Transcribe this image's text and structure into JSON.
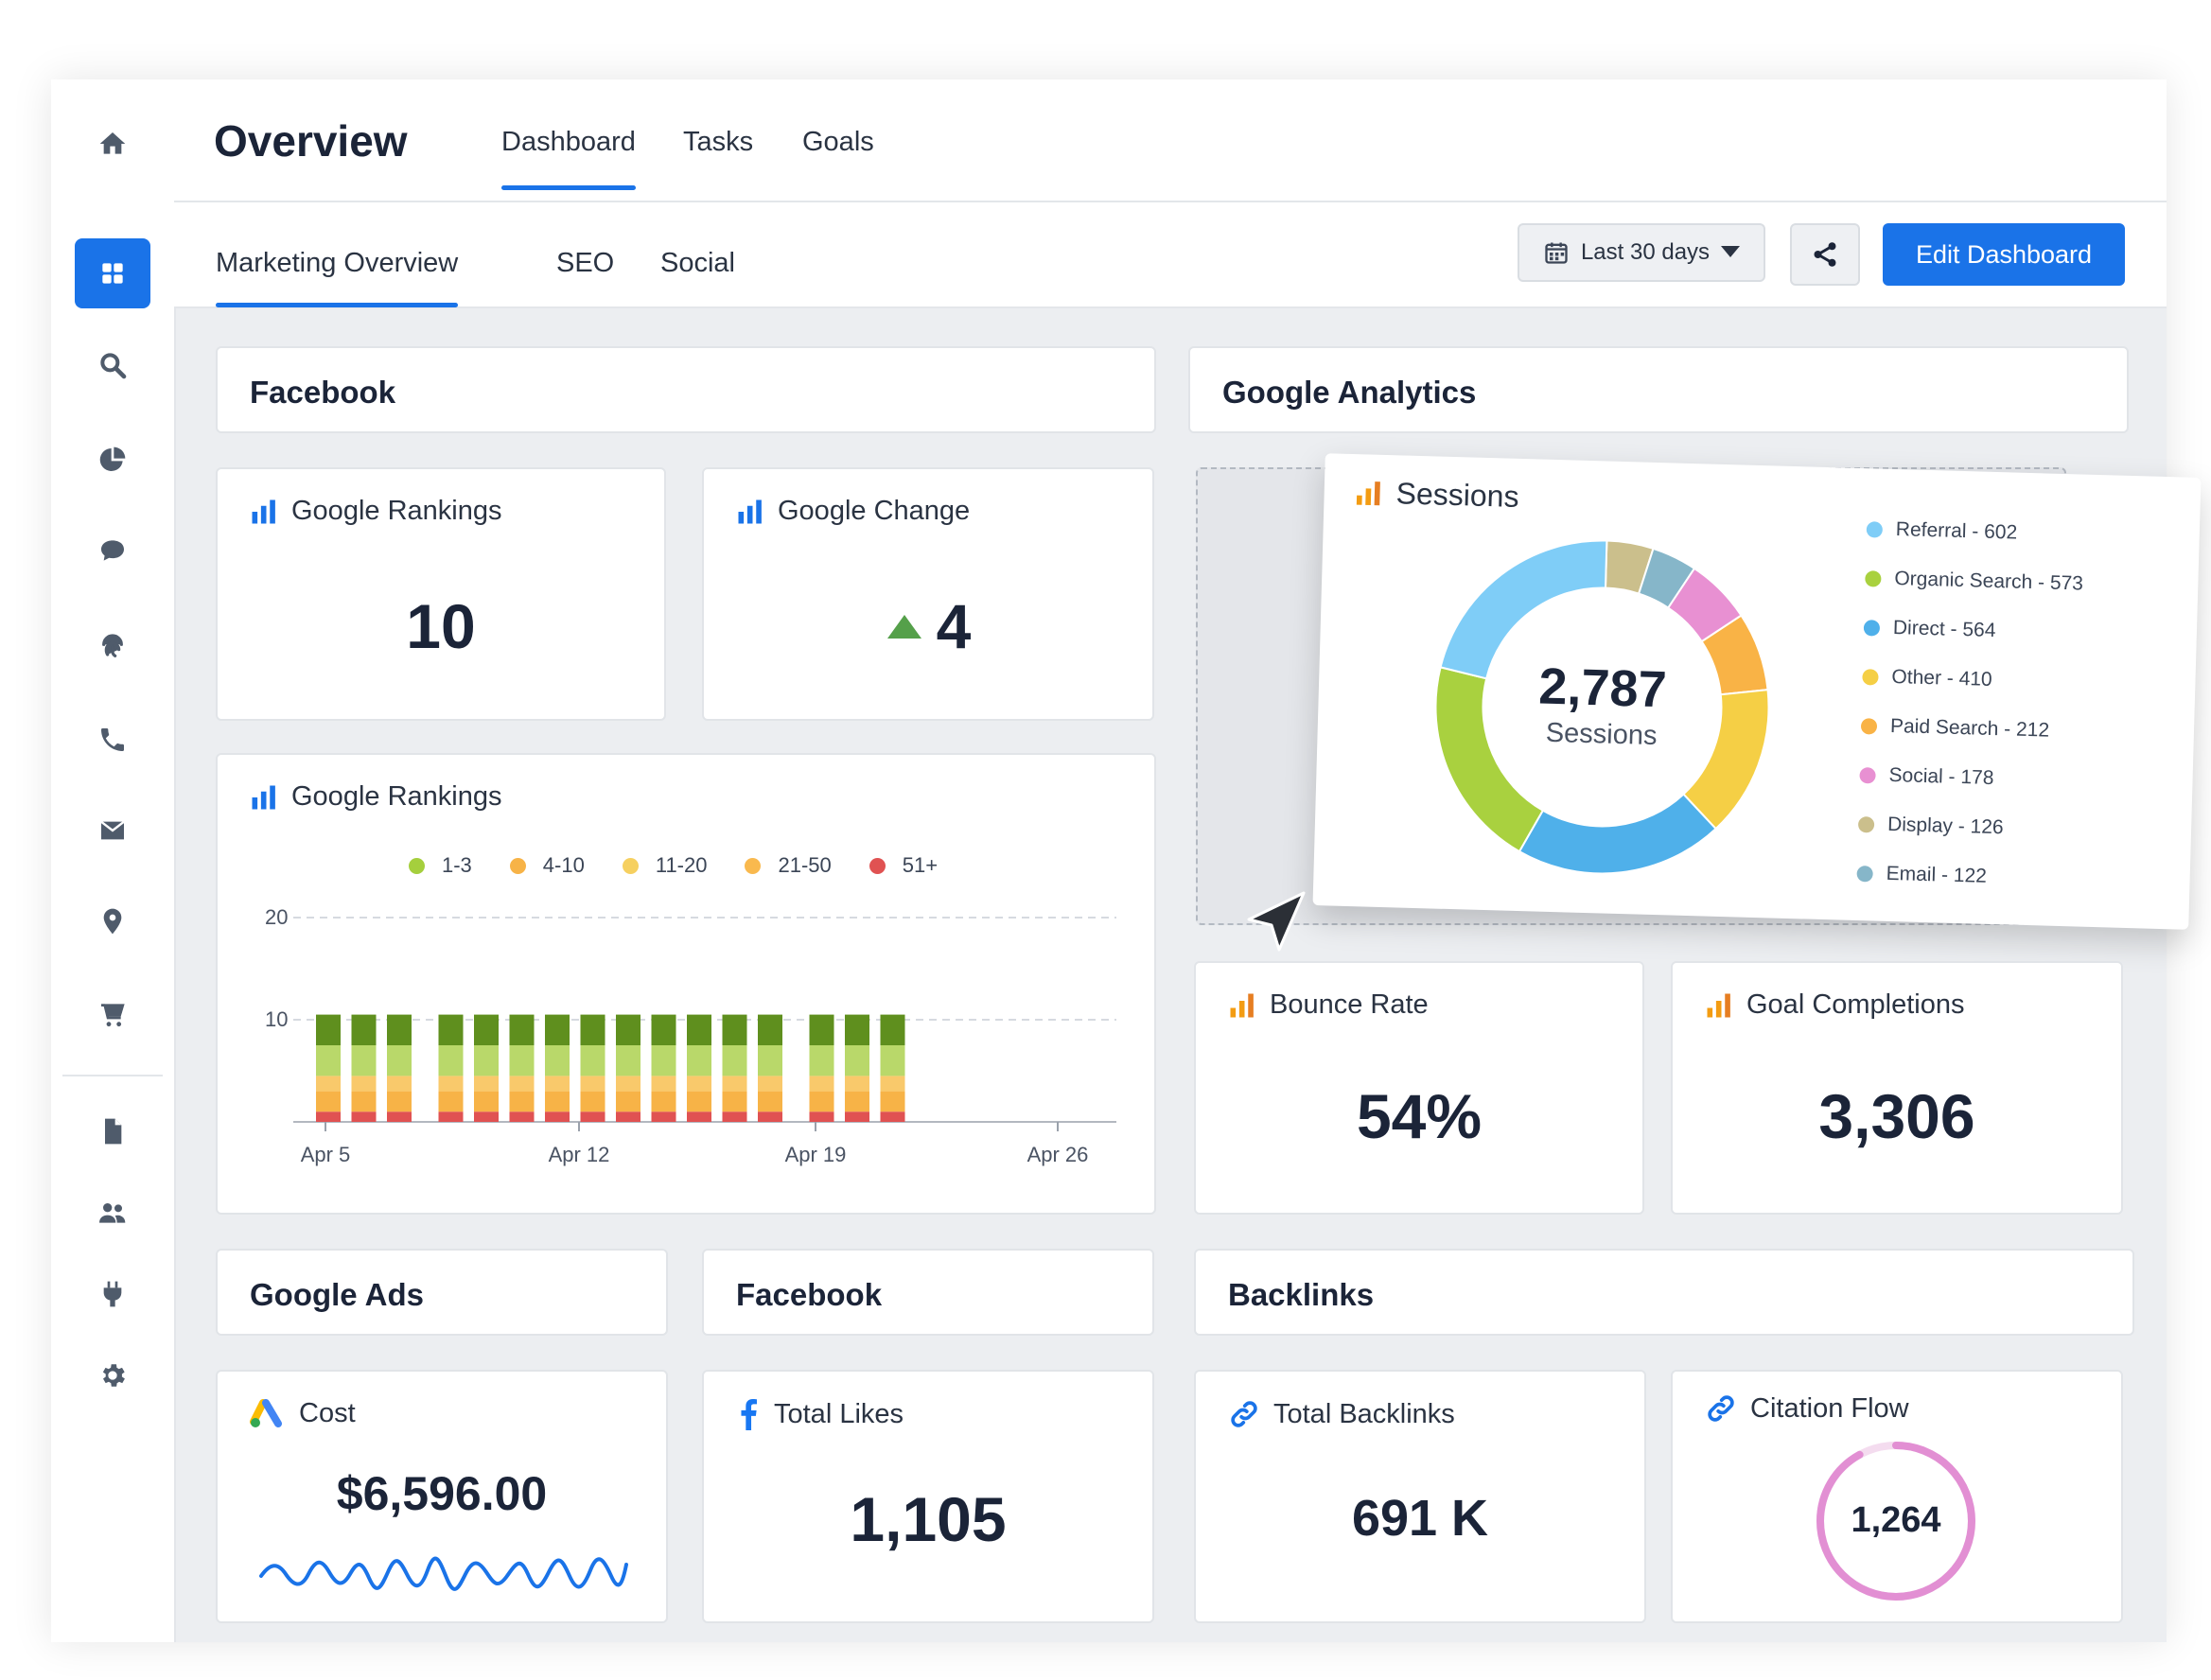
{
  "header": {
    "title": "Overview",
    "tabs": [
      {
        "label": "Dashboard"
      },
      {
        "label": "Tasks"
      },
      {
        "label": "Goals"
      }
    ]
  },
  "subheader": {
    "tabs": [
      {
        "label": "Marketing Overview"
      },
      {
        "label": "SEO"
      },
      {
        "label": "Social"
      }
    ],
    "date_range": "Last 30 days",
    "edit_label": "Edit Dashboard"
  },
  "sections": {
    "facebook_top": "Facebook",
    "google_analytics": "Google Analytics",
    "google_ads": "Google Ads",
    "facebook_bottom": "Facebook",
    "backlinks": "Backlinks"
  },
  "widgets": {
    "google_rankings": {
      "label": "Google Rankings",
      "value": "10"
    },
    "google_change": {
      "label": "Google Change",
      "value": "4"
    },
    "bounce_rate": {
      "label": "Bounce Rate",
      "value": "54%"
    },
    "goal_completions": {
      "label": "Goal Completions",
      "value": "3,306"
    },
    "cost": {
      "label": "Cost",
      "value": "$6,596.00"
    },
    "total_likes": {
      "label": "Total Likes",
      "value": "1,105"
    },
    "total_backlinks": {
      "label": "Total Backlinks",
      "value": "691 K"
    },
    "citation_flow": {
      "label": "Citation Flow",
      "value": "1,264",
      "fraction": 0.92
    }
  },
  "rankings_chart": {
    "title": "Google Rankings",
    "legend": [
      {
        "label": "1-3",
        "color": "#a5cf3d"
      },
      {
        "label": "4-10",
        "color": "#f7b347"
      },
      {
        "label": "11-20",
        "color": "#f6d060"
      },
      {
        "label": "21-50",
        "color": "#f9b94e"
      },
      {
        "label": "51+",
        "color": "#e05252"
      }
    ],
    "y_ticks": [
      "20",
      "10"
    ],
    "x_ticks": [
      "Apr 5",
      "Apr 12",
      "Apr 19",
      "Apr 26"
    ]
  },
  "sessions": {
    "title": "Sessions",
    "total": "2,787",
    "total_label": "Sessions",
    "legend": [
      {
        "label": "Referral - 602",
        "color": "#7fcdf7"
      },
      {
        "label": "Organic Search - 573",
        "color": "#a9d13f"
      },
      {
        "label": "Direct - 564",
        "color": "#4fb0ea"
      },
      {
        "label": "Other - 410",
        "color": "#f5cf45"
      },
      {
        "label": "Paid Search - 212",
        "color": "#f9b346"
      },
      {
        "label": "Social - 178",
        "color": "#e890d2"
      },
      {
        "label": "Display - 126",
        "color": "#cbbf8c"
      },
      {
        "label": "Email - 122",
        "color": "#86b6c9"
      }
    ]
  },
  "chart_data": [
    {
      "type": "bar",
      "title": "Google Rankings",
      "stacked": true,
      "x_labels": [
        "Apr 5",
        "Apr 12",
        "Apr 19",
        "Apr 26"
      ],
      "ylim": [
        0,
        20
      ],
      "y_ticks": [
        10,
        20
      ],
      "bar_count": 16,
      "series": [
        {
          "name": "51+",
          "values": [
            1,
            1,
            1,
            1,
            1,
            1,
            1,
            1,
            1,
            1,
            1,
            1,
            1,
            1,
            1,
            1
          ]
        },
        {
          "name": "21-50",
          "values": [
            2,
            2,
            2,
            2,
            2,
            2,
            2,
            2,
            2,
            2,
            2,
            2,
            2,
            2,
            2,
            2
          ]
        },
        {
          "name": "11-20",
          "values": [
            1.5,
            1.5,
            1.5,
            1.5,
            1.5,
            1.5,
            1.5,
            1.5,
            1.5,
            1.5,
            1.5,
            1.5,
            1.5,
            1.5,
            1.5,
            1.5
          ]
        },
        {
          "name": "4-10",
          "values": [
            3,
            3,
            3,
            3,
            3,
            3,
            3,
            3,
            3,
            3,
            3,
            3,
            3,
            3,
            3,
            3
          ]
        },
        {
          "name": "1-3",
          "values": [
            3,
            3,
            3,
            3,
            3,
            3,
            3,
            3,
            3,
            3,
            3,
            3,
            3,
            3,
            3,
            3
          ]
        }
      ]
    },
    {
      "type": "pie",
      "title": "Sessions",
      "donut": true,
      "categories": [
        "Referral",
        "Organic Search",
        "Direct",
        "Other",
        "Paid Search",
        "Social",
        "Display",
        "Email"
      ],
      "values": [
        602,
        573,
        564,
        410,
        212,
        178,
        126,
        122
      ],
      "total": 2787
    }
  ]
}
